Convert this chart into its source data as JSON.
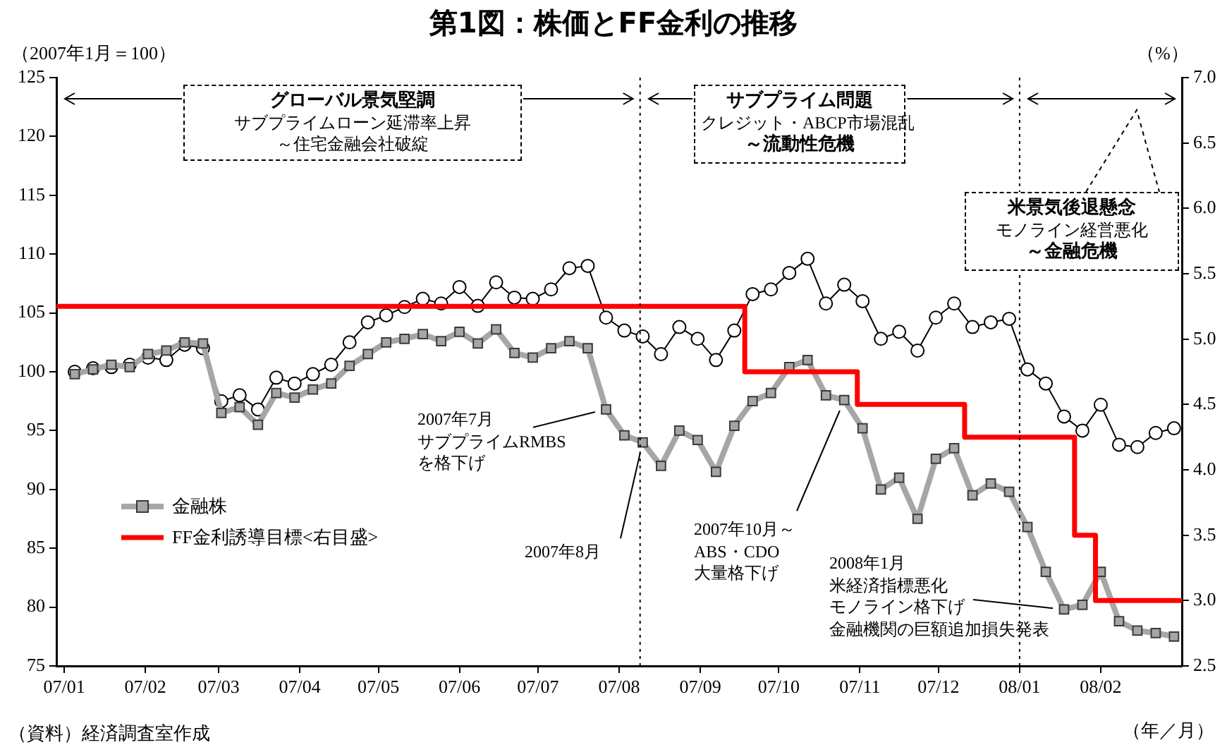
{
  "chart_data": {
    "type": "line",
    "title": "第1図：株価とFF金利の推移",
    "ylabel": "（2007年1月＝100）",
    "y2label": "（%）",
    "xlabel": "（年／月）",
    "annotations": [
      "グローバル景気堅調",
      "サブプライムローン延滞率上昇",
      "～住宅金融会社破綻",
      "サブプライム問題",
      "クレジット・ABCP市場混乱",
      "～流動性危機",
      "米景気後退懸念",
      "モノライン経営悪化",
      "～金融危機",
      "2007年7月",
      {
        "text": "サブプライムRMBS",
        "x": "2007-07-27",
        "y": 96.8
      },
      "を格下げ",
      {
        "text": "2007年8月",
        "x": "2007-08-10",
        "y": 94.0
      },
      {
        "text": "2007年10月～",
        "x": "2007-10-26",
        "y": 97.6
      },
      "ABS・CDO",
      "大量格下げ",
      "2008年1月",
      "米経済指標悪化",
      {
        "text": "モノライン格下げ",
        "x": "2008-01-18",
        "y": 79.8
      },
      "金融機関の巨額追加損失発表",
      "（資料）経済調査室作成"
    ],
    "x": [
      "2007-01-05",
      "2007-01-12",
      "2007-01-19",
      "2007-01-26",
      "2007-02-02",
      "2007-02-09",
      "2007-02-16",
      "2007-02-23",
      "2007-03-02",
      "2007-03-09",
      "2007-03-16",
      "2007-03-23",
      "2007-03-30",
      "2007-04-06",
      "2007-04-13",
      "2007-04-20",
      "2007-04-27",
      "2007-05-04",
      "2007-05-11",
      "2007-05-18",
      "2007-05-25",
      "2007-06-01",
      "2007-06-08",
      "2007-06-15",
      "2007-06-22",
      "2007-06-29",
      "2007-07-06",
      "2007-07-13",
      "2007-07-20",
      "2007-07-27",
      "2007-08-03",
      "2007-08-10",
      "2007-08-17",
      "2007-08-24",
      "2007-08-31",
      "2007-09-07",
      "2007-09-14",
      "2007-09-21",
      "2007-09-28",
      "2007-10-05",
      "2007-10-12",
      "2007-10-19",
      "2007-10-26",
      "2007-11-02",
      "2007-11-09",
      "2007-11-16",
      "2007-11-23",
      "2007-11-30",
      "2007-12-07",
      "2007-12-14",
      "2007-12-21",
      "2007-12-28",
      "2008-01-04",
      "2008-01-11",
      "2008-01-18",
      "2008-01-25",
      "2008-02-01",
      "2008-02-08",
      "2008-02-15",
      "2008-02-22",
      "2008-02-29"
    ],
    "series": [
      {
        "color": "#000000",
        "marker": "circle",
        "values": [
          100.0,
          100.3,
          100.4,
          100.6,
          101.2,
          101.0,
          102.3,
          102.0,
          97.5,
          98.0,
          96.8,
          99.5,
          99.0,
          99.8,
          100.6,
          102.5,
          104.2,
          104.8,
          105.5,
          106.2,
          105.8,
          107.2,
          105.6,
          107.6,
          106.3,
          106.2,
          107.0,
          108.8,
          109.0,
          104.6,
          103.5,
          103.0,
          101.5,
          103.8,
          102.8,
          101.0,
          103.5,
          106.6,
          107.0,
          108.4,
          109.6,
          105.8,
          107.4,
          106.0,
          102.8,
          103.4,
          101.8,
          104.6,
          105.8,
          103.8,
          104.2,
          104.5,
          100.2,
          99.0,
          96.2,
          95.0,
          97.2,
          93.8,
          93.6,
          94.8,
          95.2
        ]
      },
      {
        "name": "金融株",
        "color": "#a6a6a6",
        "marker": "square",
        "values": [
          99.8,
          100.2,
          100.6,
          100.4,
          101.5,
          101.8,
          102.5,
          102.4,
          96.5,
          97.0,
          95.5,
          98.2,
          97.8,
          98.5,
          99.0,
          100.5,
          101.5,
          102.5,
          102.8,
          103.2,
          102.6,
          103.4,
          102.4,
          103.6,
          101.6,
          101.2,
          102.0,
          102.6,
          102.0,
          96.8,
          94.6,
          94.0,
          92.0,
          95.0,
          94.2,
          91.5,
          95.4,
          97.5,
          98.2,
          100.4,
          101.0,
          98.0,
          97.6,
          95.2,
          90.0,
          91.0,
          87.5,
          92.6,
          93.5,
          89.5,
          90.5,
          89.8,
          86.8,
          83.0,
          79.8,
          80.2,
          83.0,
          78.8,
          78.0,
          77.8,
          77.5
        ]
      },
      {
        "name": "FF金利誘導目標<右目盛>",
        "type": "step",
        "axis": "y2",
        "color": "#ff0000",
        "marker": "none",
        "x": [
          "2006-12-29",
          "2007-09-18",
          "2007-10-31",
          "2007-12-11",
          "2008-01-22",
          "2008-01-30",
          "2008-03-03"
        ],
        "values": [
          5.25,
          4.75,
          4.5,
          4.25,
          3.5,
          3.0,
          3.0
        ]
      }
    ],
    "xlim": [
      "2006-12-29",
      "2008-03-03"
    ],
    "xticks": [
      {
        "value": "2007-01-01",
        "label": "07/01"
      },
      {
        "value": "2007-02-01",
        "label": "07/02"
      },
      {
        "value": "2007-03-01",
        "label": "07/03"
      },
      {
        "value": "2007-04-01",
        "label": "07/04"
      },
      {
        "value": "2007-05-01",
        "label": "07/05"
      },
      {
        "value": "2007-06-01",
        "label": "07/06"
      },
      {
        "value": "2007-07-01",
        "label": "07/07"
      },
      {
        "value": "2007-08-01",
        "label": "07/08"
      },
      {
        "value": "2007-09-01",
        "label": "07/09"
      },
      {
        "value": "2007-10-01",
        "label": "07/10"
      },
      {
        "value": "2007-11-01",
        "label": "07/11"
      },
      {
        "value": "2007-12-01",
        "label": "07/12"
      },
      {
        "value": "2008-01-01",
        "label": "08/01"
      },
      {
        "value": "2008-02-01",
        "label": "08/02"
      }
    ],
    "ylim": [
      75,
      125
    ],
    "yticks": [
      75,
      80,
      85,
      90,
      95,
      100,
      105,
      110,
      115,
      120,
      125
    ],
    "y2lim": [
      2.5,
      7.0
    ],
    "y2ticks": [
      {
        "value": 2.5,
        "label": "2.5"
      },
      {
        "value": 3.0,
        "label": "3.0"
      },
      {
        "value": 3.5,
        "label": "3.5"
      },
      {
        "value": 4.0,
        "label": "4.0"
      },
      {
        "value": 4.5,
        "label": "4.5"
      },
      {
        "value": 5.0,
        "label": "5.0"
      },
      {
        "value": 5.5,
        "label": "5.5"
      },
      {
        "value": 6.0,
        "label": "6.0"
      },
      {
        "value": 6.5,
        "label": "6.5"
      },
      {
        "value": 7.0,
        "label": "7.0"
      }
    ],
    "ref_lines": [
      {
        "axis": "x",
        "value": "2007-08-09",
        "color": "#000000",
        "line_style": "dotted"
      },
      {
        "axis": "x",
        "value": "2008-01-01",
        "color": "#000000",
        "line_style": "dotted"
      }
    ],
    "grid": false,
    "legend": "bottom left"
  }
}
